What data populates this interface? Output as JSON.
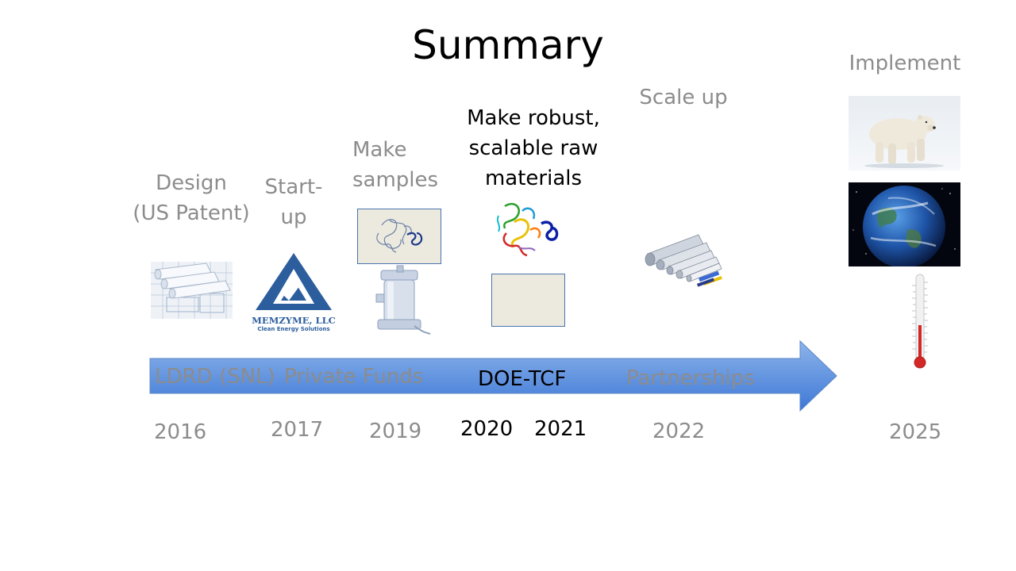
{
  "slide": {
    "title": "Summary",
    "phases": {
      "design": "Design\n(US Patent)",
      "startup": "Start-\nup",
      "samples": "Make\nsamples",
      "robust": "Make robust,\nscalable raw\nmaterials",
      "scale": "Scale up",
      "implement": "Implement"
    },
    "funding": {
      "ldrd": "LDRD (SNL)",
      "private": "Private Funds",
      "doe": "DOE-TCF",
      "partnerships": "Partnerships"
    },
    "years": [
      "2016",
      "2017",
      "2019",
      "2020",
      "2021",
      "2022",
      "2025"
    ],
    "logo": {
      "name": "MEMZYME, LLC",
      "tagline": "Clean Energy Solutions"
    },
    "colors": {
      "arrow_top": "#8db4ea",
      "arrow_bottom": "#3e78d6",
      "gray_text": "#8c8c8c",
      "thermo_red": "#d42828"
    },
    "icons": [
      "blueprint-icon",
      "memzyme-logo",
      "protein-icon",
      "reactor-icon",
      "membrane-modules-icon",
      "polar-bear-image",
      "earth-image",
      "thermometer-icon"
    ]
  }
}
